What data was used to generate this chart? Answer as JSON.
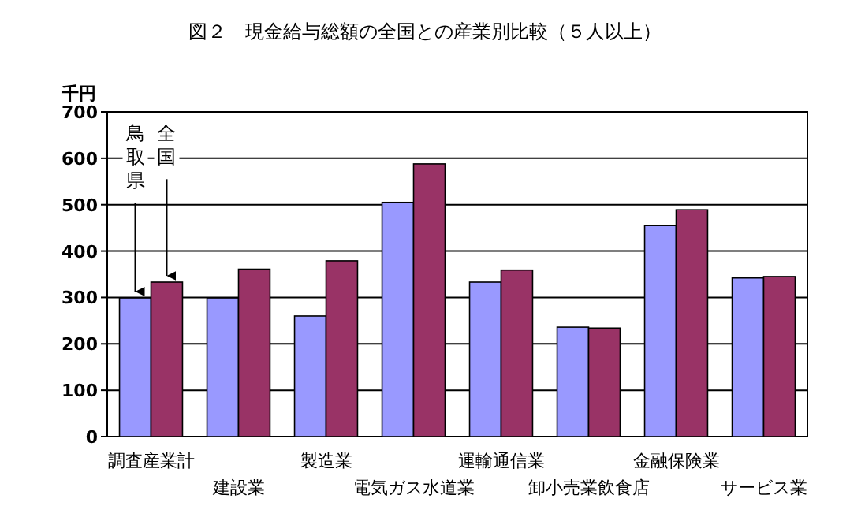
{
  "chart_data": {
    "type": "bar",
    "title": "図２　現金給与総額の全国との産業別比較（５人以上）",
    "ylabel": "千円",
    "categories": [
      "調査産業計",
      "建設業",
      "製造業",
      "電気ガス水道業",
      "運輸通信業",
      "卸小売業飲食店",
      "金融保険業",
      "サービス業"
    ],
    "series": [
      {
        "name": "鳥取県",
        "color": "#9999ff",
        "values": [
          299,
          299,
          260,
          505,
          333,
          236,
          455,
          342
        ]
      },
      {
        "name": "全国",
        "color": "#993366",
        "values": [
          333,
          361,
          379,
          588,
          359,
          234,
          489,
          345
        ]
      }
    ],
    "ylim": [
      0,
      700
    ],
    "yticks": [
      0,
      100,
      200,
      300,
      400,
      500,
      600,
      700
    ],
    "grid": "y"
  }
}
